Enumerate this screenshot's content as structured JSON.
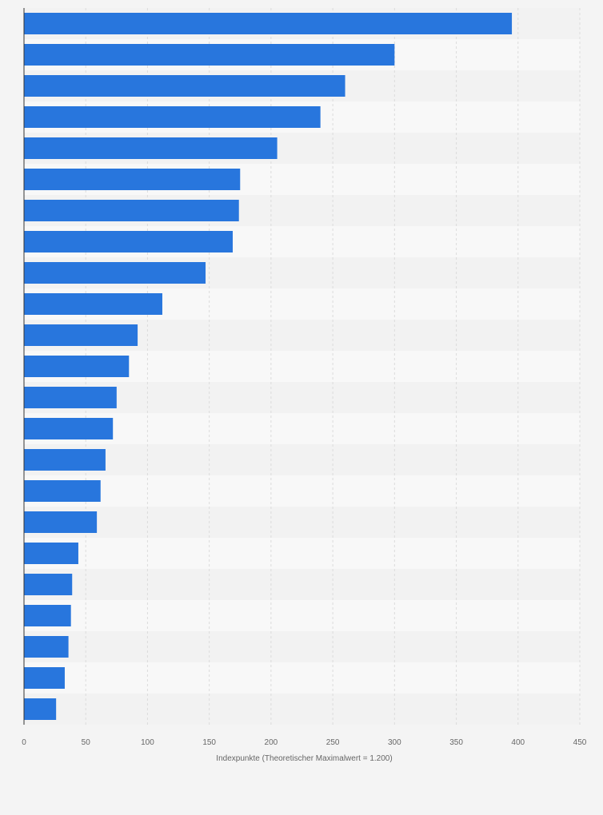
{
  "chart_data": {
    "type": "bar",
    "orientation": "horizontal",
    "title": "",
    "xlabel": "Indexpunkte (Theoretischer Maximalwert = 1.200)",
    "ylabel": "",
    "xlim": [
      0,
      450
    ],
    "xticks": [
      0,
      50,
      100,
      150,
      200,
      250,
      300,
      350,
      400,
      450
    ],
    "grid": true,
    "values": [
      395,
      300,
      260,
      240,
      205,
      175,
      174,
      169,
      147,
      112,
      92,
      85,
      75,
      72,
      66,
      62,
      59,
      44,
      39,
      38,
      36,
      33,
      26
    ],
    "colors": {
      "bar": "#2876dd",
      "band_dark": "#f2f2f2",
      "band_light": "#f8f8f8",
      "grid": "#dcdcdc",
      "axis": "#333333",
      "text": "#666666"
    }
  }
}
